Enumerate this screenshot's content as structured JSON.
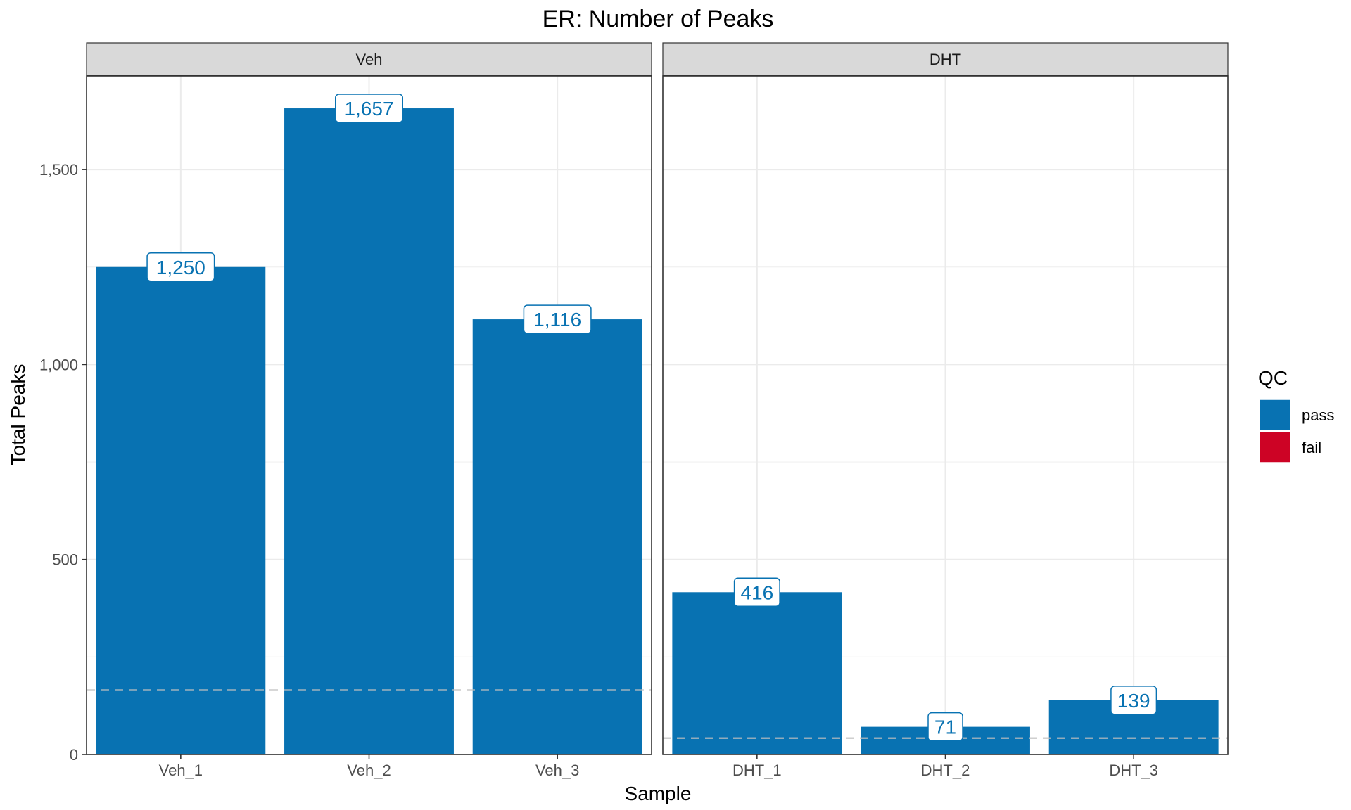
{
  "chart_data": {
    "type": "bar",
    "title": "ER: Number of Peaks",
    "xlabel": "Sample",
    "ylabel": "Total Peaks",
    "ylim": [
      0,
      1740
    ],
    "y_ticks": [
      0,
      500,
      1000,
      1500
    ],
    "y_tick_labels": [
      "0",
      "500",
      "1,000",
      "1,500"
    ],
    "grid": true,
    "colors": {
      "pass": "#0872B2",
      "fail": "#CD0325"
    },
    "legend": {
      "title": "QC",
      "placement": "right",
      "entries": [
        {
          "key": "pass",
          "label": "pass"
        },
        {
          "key": "fail",
          "label": "fail"
        }
      ]
    },
    "facets": [
      {
        "name": "Veh",
        "threshold": 165,
        "categories": [
          "Veh_1",
          "Veh_2",
          "Veh_3"
        ],
        "values": [
          1250,
          1657,
          1116
        ],
        "value_labels": [
          "1,250",
          "1,657",
          "1,116"
        ],
        "qc": [
          "pass",
          "pass",
          "pass"
        ]
      },
      {
        "name": "DHT",
        "threshold": 42,
        "categories": [
          "DHT_1",
          "DHT_2",
          "DHT_3"
        ],
        "values": [
          416,
          71,
          139
        ],
        "value_labels": [
          "416",
          "71",
          "139"
        ],
        "qc": [
          "pass",
          "pass",
          "pass"
        ]
      }
    ]
  }
}
